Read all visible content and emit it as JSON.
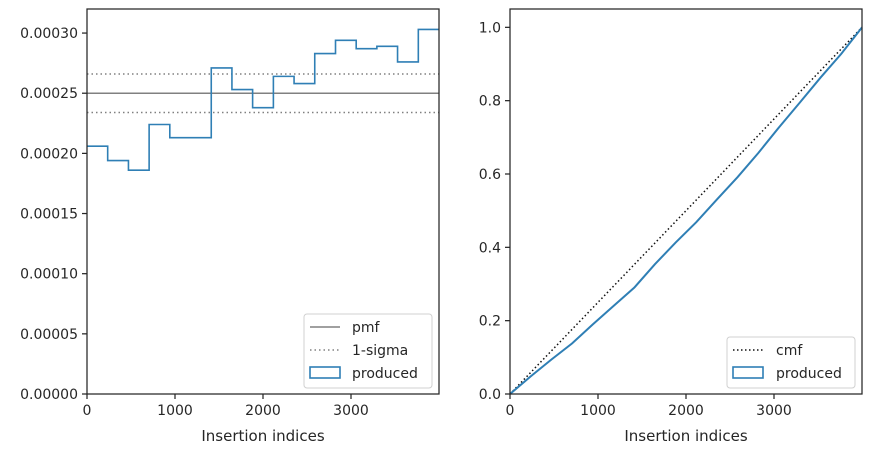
{
  "colors": {
    "produced": "#2f7fb5",
    "reference": "#808080",
    "cmf": "#111111",
    "axes": "#262626"
  },
  "chart_data": [
    {
      "type": "line",
      "title": "",
      "xlabel": "Insertion indices",
      "ylabel": "",
      "xlim": [
        0,
        4000
      ],
      "ylim": [
        0,
        0.00032
      ],
      "xticks": [
        0,
        1000,
        2000,
        3000
      ],
      "xtick_labels": [
        "0",
        "1000",
        "2000",
        "3000"
      ],
      "yticks": [
        0,
        5e-05,
        0.0001,
        0.00015,
        0.0002,
        0.00025,
        0.0003
      ],
      "ytick_labels": [
        "0.00000",
        "0.00005",
        "0.00010",
        "0.00015",
        "0.00020",
        "0.00025",
        "0.00030"
      ],
      "grid": false,
      "legend_position": "bottom-right",
      "pmf": 0.00025,
      "sigma_band": [
        0.000234,
        0.000266
      ],
      "series": [
        {
          "name": "pmf",
          "style": "solid"
        },
        {
          "name": "1-sigma",
          "style": "dotted"
        },
        {
          "name": "produced",
          "style": "step",
          "bin_edges": [
            0,
            235,
            471,
            706,
            941,
            1176,
            1412,
            1647,
            1882,
            2118,
            2353,
            2588,
            2824,
            3059,
            3294,
            3529,
            3765,
            4000
          ],
          "values": [
            0.000206,
            0.000194,
            0.000186,
            0.000224,
            0.000213,
            0.000213,
            0.000271,
            0.000253,
            0.000238,
            0.000264,
            0.000258,
            0.000283,
            0.000294,
            0.000287,
            0.000289,
            0.000276,
            0.000303
          ]
        }
      ]
    },
    {
      "type": "line",
      "title": "",
      "xlabel": "Insertion indices",
      "ylabel": "",
      "xlim": [
        0,
        4000
      ],
      "ylim": [
        0,
        1.05
      ],
      "xticks": [
        0,
        1000,
        2000,
        3000
      ],
      "xtick_labels": [
        "0",
        "1000",
        "2000",
        "3000"
      ],
      "yticks": [
        0,
        0.2,
        0.4,
        0.6,
        0.8,
        1.0
      ],
      "ytick_labels": [
        "0.0",
        "0.2",
        "0.4",
        "0.6",
        "0.8",
        "1.0"
      ],
      "grid": false,
      "legend_position": "bottom-right",
      "series": [
        {
          "name": "cmf",
          "style": "dotted",
          "x": [
            0,
            4000
          ],
          "y": [
            0,
            1
          ]
        },
        {
          "name": "produced",
          "style": "step",
          "x": [
            0,
            235,
            471,
            706,
            941,
            1176,
            1412,
            1647,
            1882,
            2118,
            2353,
            2588,
            2824,
            3059,
            3294,
            3529,
            3765,
            4000
          ],
          "y": [
            0,
            0.048,
            0.094,
            0.138,
            0.19,
            0.24,
            0.29,
            0.354,
            0.413,
            0.469,
            0.531,
            0.592,
            0.658,
            0.728,
            0.795,
            0.863,
            0.928,
            1.0
          ]
        }
      ]
    }
  ]
}
